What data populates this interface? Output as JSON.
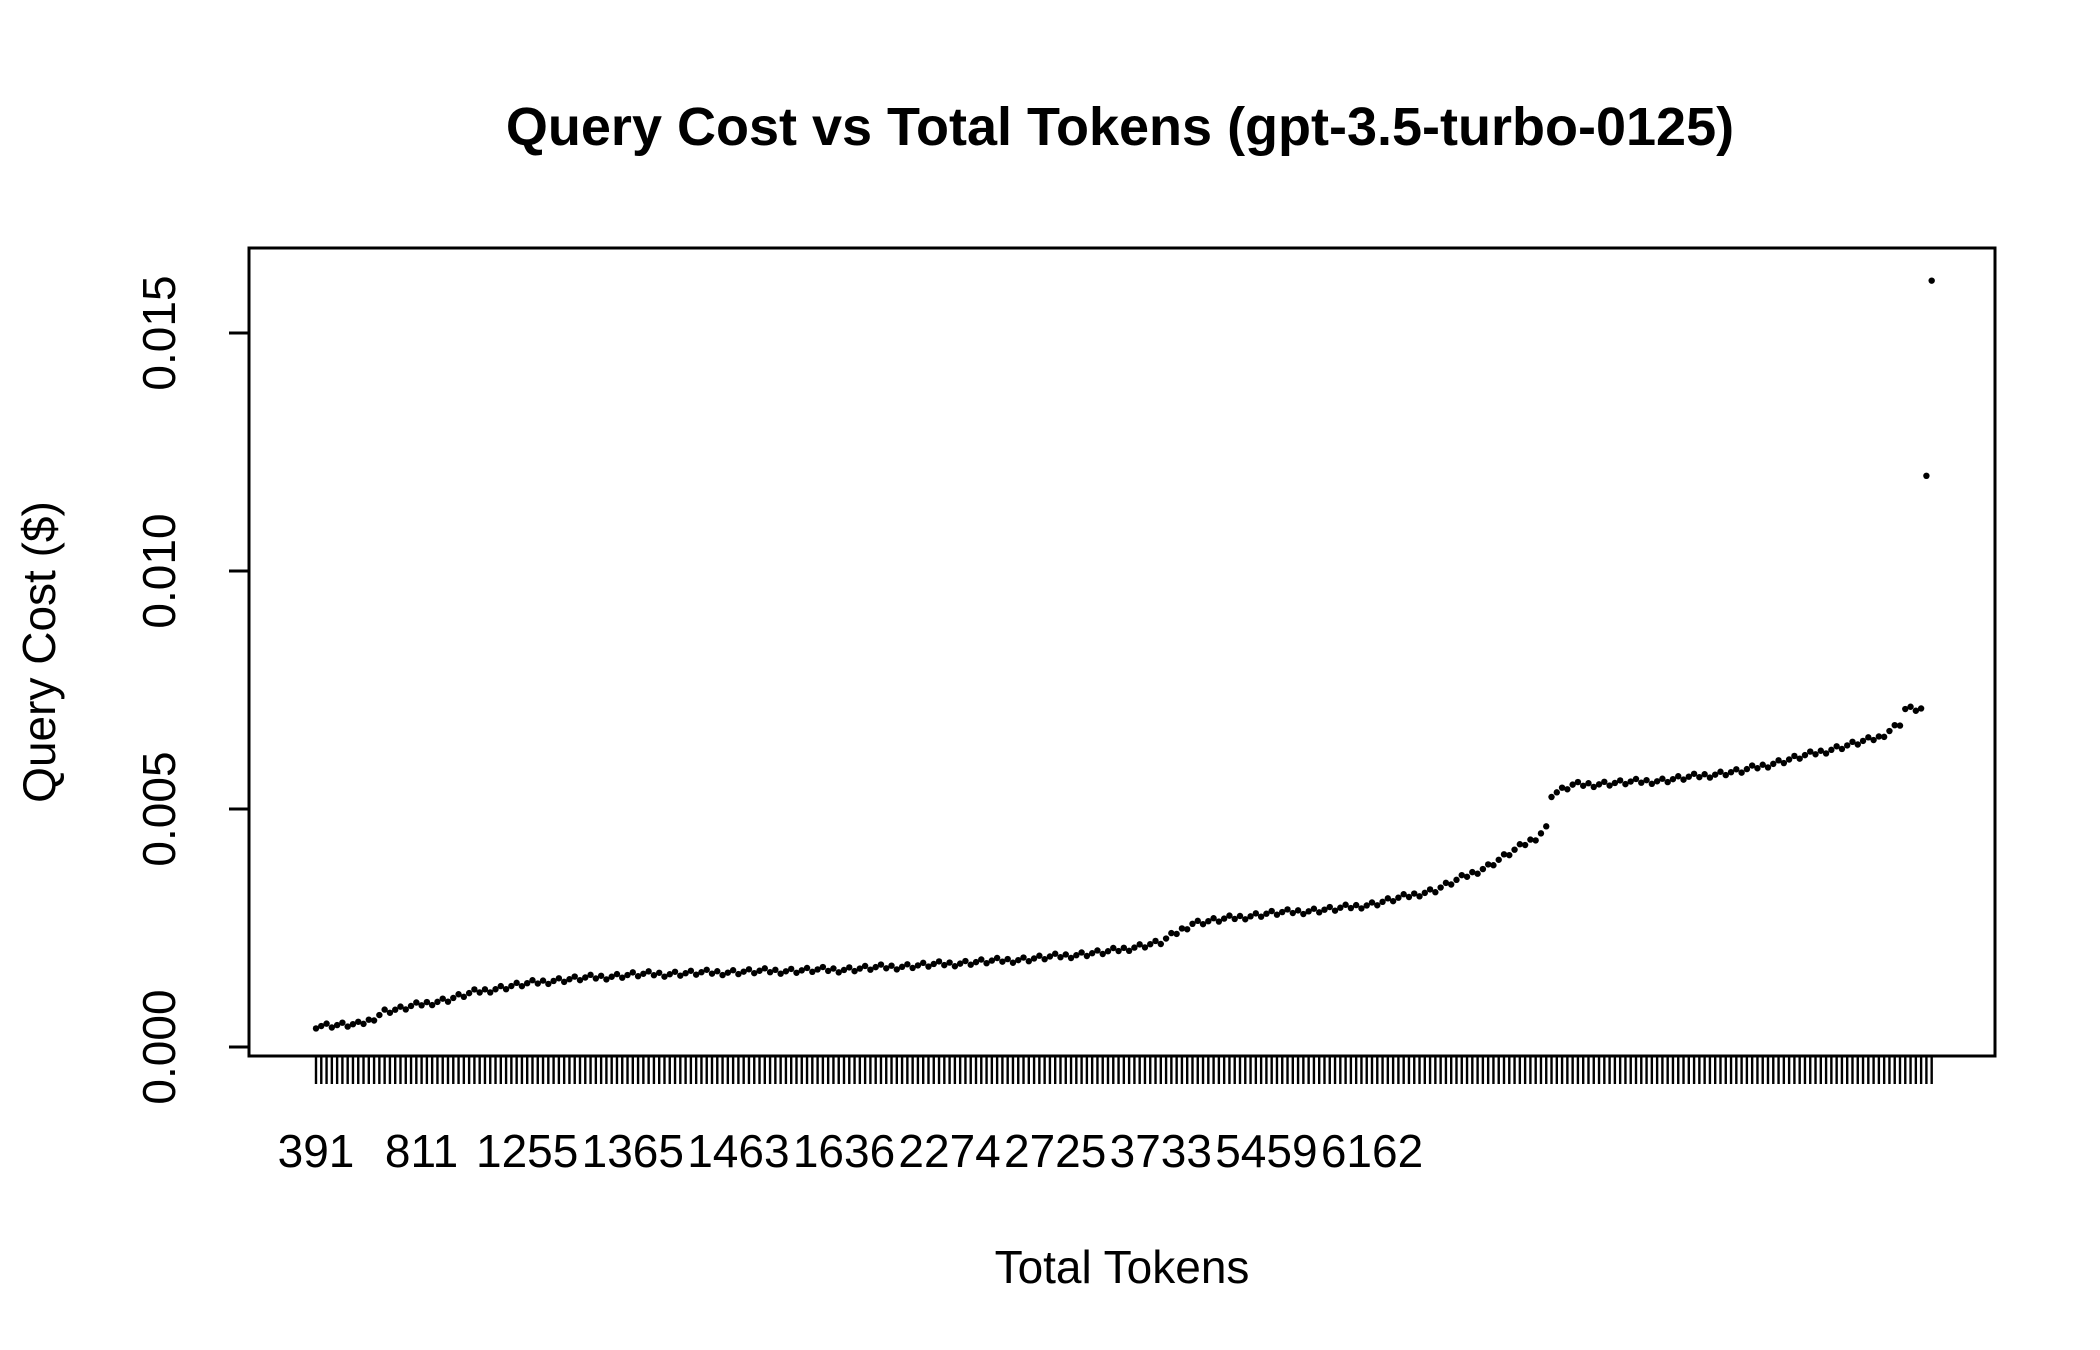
{
  "chart_data": {
    "type": "scatter",
    "title": "Query Cost vs Total Tokens (gpt-3.5-turbo-0125)",
    "xlabel": "Total Tokens",
    "ylabel": "Query Cost ($)",
    "ylim": [
      0,
      0.0165
    ],
    "y_ticks": [
      {
        "value": 0.0,
        "label": "0.000"
      },
      {
        "value": 0.005,
        "label": "0.005"
      },
      {
        "value": 0.01,
        "label": "0.010"
      },
      {
        "value": 0.015,
        "label": "0.015"
      }
    ],
    "x_tick_labels": [
      "391",
      "811",
      "1255",
      "1365",
      "1463",
      "1636",
      "2274",
      "2725",
      "3733",
      "5459",
      "6162"
    ],
    "x_tick_label_every": 20,
    "anchors": [
      [
        0,
        0.00045
      ],
      [
        8,
        0.00047
      ],
      [
        10,
        0.00055
      ],
      [
        13,
        0.00075
      ],
      [
        16,
        0.0008
      ],
      [
        20,
        0.0009
      ],
      [
        25,
        0.001
      ],
      [
        30,
        0.00115
      ],
      [
        38,
        0.0013
      ],
      [
        45,
        0.0014
      ],
      [
        60,
        0.00152
      ],
      [
        80,
        0.00158
      ],
      [
        100,
        0.00163
      ],
      [
        120,
        0.00175
      ],
      [
        135,
        0.00185
      ],
      [
        150,
        0.002
      ],
      [
        160,
        0.0022
      ],
      [
        166,
        0.0026
      ],
      [
        180,
        0.0028
      ],
      [
        193,
        0.0029
      ],
      [
        200,
        0.003
      ],
      [
        212,
        0.0033
      ],
      [
        222,
        0.0038
      ],
      [
        228,
        0.0042
      ],
      [
        231,
        0.0044
      ],
      [
        233,
        0.0046
      ],
      [
        234,
        0.0053
      ],
      [
        238,
        0.0055
      ],
      [
        255,
        0.0056
      ],
      [
        270,
        0.0058
      ],
      [
        285,
        0.0062
      ],
      [
        296,
        0.0065
      ],
      [
        300,
        0.0068
      ],
      [
        301,
        0.0071
      ],
      [
        304,
        0.0071
      ]
    ],
    "extra_points": [
      [
        305,
        0.012
      ],
      [
        306,
        0.0161
      ]
    ],
    "n_points": 307,
    "grid": false,
    "legend": "none"
  }
}
